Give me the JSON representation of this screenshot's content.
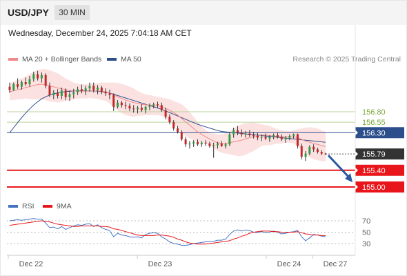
{
  "header": {
    "symbol": "USD/JPY",
    "timeframe": "30 MIN"
  },
  "datetime": "Wednesday, December 24, 2025 7:04:18 AM CET",
  "legend": {
    "ma20": {
      "label": "MA 20 + Bollinger Bands",
      "color": "#f08a8a"
    },
    "ma50": {
      "label": "MA 50",
      "color": "#2c4f8c"
    }
  },
  "copyright": "Research © 2025 Trading Central",
  "rsi_legend": {
    "rsi": {
      "label": "RSI",
      "color": "#4472c4"
    },
    "ma9": {
      "label": "9MA",
      "color": "#e8161b"
    }
  },
  "chart_data": {
    "type": "candlestick",
    "price_range": [
      154.9,
      157.05
    ],
    "horizontal_levels": [
      {
        "label": "156.80",
        "value": 156.8,
        "kind": "resistance",
        "color": "#b9d39b",
        "text_color": "#7aa638"
      },
      {
        "label": "156.55",
        "value": 156.55,
        "kind": "resistance",
        "color": "#b9d39b",
        "text_color": "#7aa638"
      },
      {
        "label": "156.30",
        "value": 156.3,
        "kind": "pivot",
        "color": "#2c4f8c"
      },
      {
        "label": "155.79",
        "value": 155.79,
        "kind": "last",
        "color": "#333333"
      },
      {
        "label": "155.40",
        "value": 155.4,
        "kind": "support",
        "color": "#e8161b"
      },
      {
        "label": "155.00",
        "value": 155.0,
        "kind": "support",
        "color": "#e8161b"
      }
    ],
    "forecast_arrow": {
      "from": 155.79,
      "to": 155.08,
      "color": "#2c5aa0"
    },
    "x_labels": [
      "Dec 22",
      "Dec 23",
      "Dec 24",
      "Dec 27"
    ],
    "candles": [
      [
        157.4,
        157.5,
        157.25,
        157.32
      ],
      [
        157.32,
        157.5,
        157.3,
        157.46
      ],
      [
        157.46,
        157.6,
        157.35,
        157.4
      ],
      [
        157.4,
        157.55,
        157.33,
        157.51
      ],
      [
        157.51,
        157.62,
        157.42,
        157.46
      ],
      [
        157.46,
        157.66,
        157.4,
        157.58
      ],
      [
        157.58,
        157.76,
        157.52,
        157.7
      ],
      [
        157.7,
        157.78,
        157.55,
        157.6
      ],
      [
        157.6,
        157.74,
        157.5,
        157.68
      ],
      [
        157.68,
        157.72,
        157.36,
        157.42
      ],
      [
        157.42,
        157.5,
        157.15,
        157.2
      ],
      [
        157.2,
        157.32,
        157.1,
        157.26
      ],
      [
        157.26,
        157.34,
        157.12,
        157.18
      ],
      [
        157.18,
        157.38,
        157.1,
        157.31
      ],
      [
        157.31,
        157.36,
        157.08,
        157.15
      ],
      [
        157.15,
        157.3,
        157.06,
        157.22
      ],
      [
        157.22,
        157.35,
        157.12,
        157.27
      ],
      [
        157.27,
        157.4,
        157.2,
        157.34
      ],
      [
        157.34,
        157.45,
        157.24,
        157.3
      ],
      [
        157.3,
        157.42,
        157.2,
        157.36
      ],
      [
        157.36,
        157.5,
        157.28,
        157.42
      ],
      [
        157.42,
        157.5,
        157.26,
        157.32
      ],
      [
        157.32,
        157.44,
        157.22,
        157.38
      ],
      [
        157.38,
        157.42,
        157.22,
        157.28
      ],
      [
        157.28,
        157.36,
        157.18,
        157.24
      ],
      [
        157.24,
        157.33,
        157.1,
        157.2
      ],
      [
        157.2,
        157.24,
        156.82,
        156.92
      ],
      [
        156.92,
        157.08,
        156.88,
        157.02
      ],
      [
        157.02,
        157.06,
        156.9,
        156.96
      ],
      [
        156.96,
        157.04,
        156.86,
        156.94
      ],
      [
        156.94,
        157.0,
        156.82,
        156.88
      ],
      [
        156.88,
        156.96,
        156.78,
        156.86
      ],
      [
        156.86,
        156.94,
        156.76,
        156.9
      ],
      [
        156.9,
        156.98,
        156.8,
        156.84
      ],
      [
        156.84,
        156.94,
        156.76,
        156.92
      ],
      [
        156.92,
        157.0,
        156.84,
        156.95
      ],
      [
        156.95,
        157.02,
        156.88,
        156.98
      ],
      [
        156.98,
        157.04,
        156.9,
        156.96
      ],
      [
        156.96,
        157.02,
        156.8,
        156.84
      ],
      [
        156.84,
        156.9,
        156.62,
        156.68
      ],
      [
        156.68,
        156.74,
        156.5,
        156.55
      ],
      [
        156.55,
        156.6,
        156.35,
        156.4
      ],
      [
        156.4,
        156.46,
        156.28,
        156.32
      ],
      [
        156.32,
        156.36,
        156.1,
        156.14
      ],
      [
        156.14,
        156.2,
        155.96,
        156.02
      ],
      [
        156.02,
        156.1,
        155.92,
        156.04
      ],
      [
        156.04,
        156.12,
        155.96,
        156.08
      ],
      [
        156.08,
        156.14,
        155.98,
        156.02
      ],
      [
        156.02,
        156.1,
        155.96,
        156.06
      ],
      [
        156.06,
        156.12,
        155.98,
        156.04
      ],
      [
        156.04,
        156.08,
        155.94,
        155.98
      ],
      [
        155.98,
        156.06,
        155.7,
        156.0
      ],
      [
        156.0,
        156.08,
        155.92,
        156.04
      ],
      [
        156.04,
        156.1,
        155.96,
        155.98
      ],
      [
        155.98,
        156.06,
        155.92,
        156.02
      ],
      [
        156.02,
        156.3,
        155.98,
        156.26
      ],
      [
        156.26,
        156.42,
        156.18,
        156.36
      ],
      [
        156.36,
        156.46,
        156.24,
        156.3
      ],
      [
        156.3,
        156.38,
        156.2,
        156.26
      ],
      [
        156.26,
        156.34,
        156.18,
        156.28
      ],
      [
        156.28,
        156.36,
        156.2,
        156.24
      ],
      [
        156.24,
        156.32,
        156.16,
        156.22
      ],
      [
        156.22,
        156.3,
        156.12,
        156.18
      ],
      [
        156.18,
        156.26,
        156.1,
        156.2
      ],
      [
        156.2,
        156.28,
        156.12,
        156.16
      ],
      [
        156.16,
        156.24,
        156.08,
        156.2
      ],
      [
        156.2,
        156.28,
        156.14,
        156.24
      ],
      [
        156.24,
        156.3,
        156.16,
        156.2
      ],
      [
        156.2,
        156.26,
        156.1,
        156.14
      ],
      [
        156.14,
        156.22,
        156.06,
        156.18
      ],
      [
        156.18,
        156.26,
        156.12,
        156.22
      ],
      [
        156.22,
        156.28,
        156.16,
        156.26
      ],
      [
        156.26,
        156.28,
        155.92,
        155.98
      ],
      [
        155.98,
        156.04,
        155.66,
        155.72
      ],
      [
        155.72,
        155.86,
        155.62,
        155.8
      ],
      [
        155.8,
        156.0,
        155.76,
        155.96
      ],
      [
        155.96,
        156.02,
        155.84,
        155.9
      ],
      [
        155.9,
        155.94,
        155.8,
        155.84
      ],
      [
        155.84,
        155.88,
        155.76,
        155.8
      ],
      [
        155.8,
        155.82,
        155.76,
        155.79
      ]
    ],
    "ma20": [
      157.28,
      157.3,
      157.33,
      157.35,
      157.38,
      157.4,
      157.43,
      157.45,
      157.46,
      157.45,
      157.42,
      157.4,
      157.37,
      157.35,
      157.33,
      157.31,
      157.3,
      157.29,
      157.29,
      157.29,
      157.3,
      157.3,
      157.3,
      157.29,
      157.28,
      157.25,
      157.2,
      157.16,
      157.12,
      157.08,
      157.05,
      157.02,
      157.0,
      156.98,
      156.97,
      156.96,
      156.95,
      156.94,
      156.92,
      156.88,
      156.84,
      156.78,
      156.72,
      156.64,
      156.56,
      156.48,
      156.4,
      156.32,
      156.26,
      156.2,
      156.15,
      156.1,
      156.06,
      156.04,
      156.04,
      156.06,
      156.08,
      156.1,
      156.12,
      156.15,
      156.18,
      156.2,
      156.22,
      156.24,
      156.24,
      156.23,
      156.22,
      156.21,
      156.2,
      156.2,
      156.2,
      156.2,
      156.18,
      156.14,
      156.1,
      156.07,
      156.04,
      156.02,
      155.99,
      155.97
    ],
    "ma50": [
      156.3,
      156.42,
      156.54,
      156.66,
      156.77,
      156.87,
      156.96,
      157.04,
      157.11,
      157.16,
      157.2,
      157.23,
      157.25,
      157.27,
      157.28,
      157.29,
      157.3,
      157.3,
      157.3,
      157.3,
      157.3,
      157.3,
      157.29,
      157.28,
      157.27,
      157.25,
      157.22,
      157.19,
      157.16,
      157.13,
      157.1,
      157.07,
      157.04,
      157.01,
      156.98,
      156.95,
      156.92,
      156.89,
      156.86,
      156.82,
      156.78,
      156.74,
      156.7,
      156.66,
      156.62,
      156.58,
      156.54,
      156.5,
      156.47,
      156.44,
      156.41,
      156.38,
      156.35,
      156.33,
      156.32,
      156.31,
      156.3,
      156.29,
      156.28,
      156.27,
      156.26,
      156.25,
      156.24,
      156.23,
      156.22,
      156.21,
      156.2,
      156.19,
      156.18,
      156.17,
      156.16,
      156.15,
      156.14,
      156.13,
      156.12,
      156.11,
      156.1,
      156.09,
      156.08,
      156.07
    ],
    "bb_upper": [
      157.48,
      157.52,
      157.56,
      157.6,
      157.64,
      157.7,
      157.76,
      157.8,
      157.82,
      157.82,
      157.8,
      157.76,
      157.72,
      157.66,
      157.6,
      157.55,
      157.5,
      157.47,
      157.46,
      157.46,
      157.47,
      157.48,
      157.49,
      157.5,
      157.5,
      157.5,
      157.5,
      157.49,
      157.47,
      157.44,
      157.4,
      157.36,
      157.3,
      157.25,
      157.22,
      157.2,
      157.18,
      157.16,
      157.14,
      157.12,
      157.1,
      157.06,
      157.02,
      156.98,
      156.9,
      156.8,
      156.68,
      156.56,
      156.46,
      156.36,
      156.3,
      156.28,
      156.26,
      156.26,
      156.28,
      156.34,
      156.4,
      156.46,
      156.5,
      156.53,
      156.54,
      156.54,
      156.52,
      156.5,
      156.48,
      156.46,
      156.42,
      156.38,
      156.36,
      156.34,
      156.34,
      156.36,
      156.38,
      156.4,
      156.42,
      156.43,
      156.42,
      156.4,
      156.36,
      156.32
    ],
    "bb_lower": [
      157.08,
      157.08,
      157.1,
      157.1,
      157.12,
      157.1,
      157.1,
      157.1,
      157.1,
      157.08,
      157.04,
      157.04,
      157.02,
      157.04,
      157.06,
      157.07,
      157.1,
      157.11,
      157.12,
      157.12,
      157.13,
      157.12,
      157.11,
      157.08,
      157.06,
      157.0,
      156.9,
      156.83,
      156.77,
      156.72,
      156.7,
      156.68,
      156.7,
      156.71,
      156.72,
      156.72,
      156.72,
      156.72,
      156.7,
      156.64,
      156.58,
      156.5,
      156.42,
      156.3,
      156.22,
      156.16,
      156.12,
      156.08,
      156.06,
      156.04,
      156.0,
      155.92,
      155.86,
      155.82,
      155.8,
      155.78,
      155.76,
      155.74,
      155.74,
      155.77,
      155.82,
      155.86,
      155.92,
      155.98,
      156.0,
      156.0,
      156.02,
      156.04,
      156.04,
      156.06,
      156.06,
      156.04,
      155.98,
      155.88,
      155.78,
      155.71,
      155.66,
      155.64,
      155.62,
      155.62
    ],
    "rsi": [
      70,
      71,
      72,
      71,
      72,
      73,
      74,
      73,
      73,
      66,
      58,
      59,
      56,
      60,
      55,
      58,
      61,
      63,
      62,
      64,
      65,
      60,
      63,
      58,
      55,
      53,
      42,
      48,
      45,
      44,
      42,
      41,
      42,
      40,
      46,
      48,
      49,
      48,
      42,
      38,
      33,
      30,
      29,
      27,
      27,
      28,
      30,
      31,
      32,
      33,
      33,
      34,
      36,
      36,
      38,
      46,
      52,
      54,
      52,
      54,
      53,
      50,
      49,
      51,
      49,
      50,
      52,
      50,
      47,
      48,
      50,
      51,
      53,
      42,
      35,
      40,
      46,
      45,
      43,
      42
    ],
    "rsi_ma9": [
      62,
      63,
      64,
      65,
      66,
      67,
      68,
      69,
      70,
      69,
      68,
      66,
      64,
      63,
      62,
      61,
      60,
      60,
      61,
      61,
      61,
      61,
      61,
      60,
      60,
      59,
      56,
      55,
      53,
      51,
      49,
      47,
      45,
      44,
      44,
      44,
      44,
      45,
      45,
      44,
      43,
      41,
      38,
      36,
      33,
      31,
      30,
      29,
      29,
      29,
      30,
      31,
      32,
      33,
      34,
      35,
      38,
      40,
      43,
      45,
      48,
      50,
      51,
      52,
      52,
      52,
      51,
      51,
      50,
      50,
      50,
      50,
      51,
      49,
      47,
      46,
      45,
      45,
      44,
      44
    ]
  },
  "rsi_levels": [
    {
      "label": "70",
      "value": 70
    },
    {
      "label": "50",
      "value": 50
    },
    {
      "label": "30",
      "value": 30
    }
  ]
}
